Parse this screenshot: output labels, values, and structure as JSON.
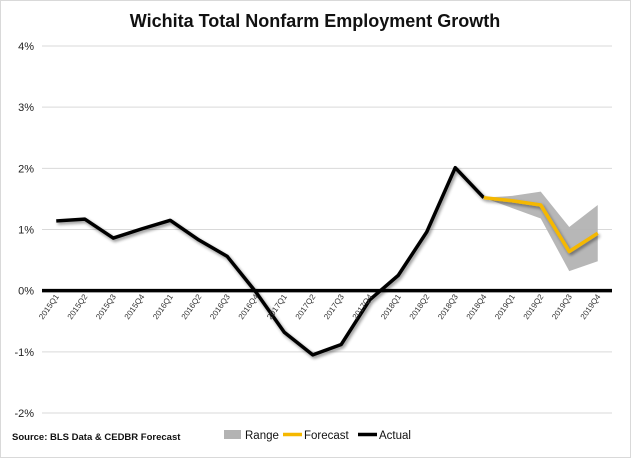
{
  "chart_data": {
    "type": "line",
    "title": "Wichita Total Nonfarm Employment Growth",
    "source": "Source: BLS Data & CEDBR Forecast",
    "categories": [
      "2015Q1",
      "2015Q2",
      "2015Q3",
      "2015Q4",
      "2016Q1",
      "2016Q2",
      "2016Q3",
      "2016Q4",
      "2017Q1",
      "2017Q2",
      "2017Q3",
      "2017Q4",
      "2018Q1",
      "2018Q2",
      "2018Q3",
      "2018Q4",
      "2019Q1",
      "2019Q2",
      "2019Q3",
      "2019Q4"
    ],
    "ylim": [
      -2,
      4
    ],
    "yticks": [
      -2,
      -1,
      0,
      1,
      2,
      3,
      4
    ],
    "ytick_labels": [
      "-2%",
      "-1%",
      "0%",
      "1%",
      "2%",
      "3%",
      "4%"
    ],
    "series": [
      {
        "name": "Actual",
        "color": "#000000",
        "values": [
          1.14,
          1.17,
          0.86,
          1.01,
          1.15,
          0.83,
          0.56,
          -0.02,
          -0.68,
          -1.05,
          -0.88,
          -0.15,
          0.25,
          0.96,
          2.01,
          1.52,
          null,
          null,
          null,
          null
        ]
      },
      {
        "name": "Forecast",
        "color": "#F5B800",
        "values": [
          null,
          null,
          null,
          null,
          null,
          null,
          null,
          null,
          null,
          null,
          null,
          null,
          null,
          null,
          null,
          1.52,
          1.47,
          1.4,
          0.64,
          0.94
        ]
      }
    ],
    "range": {
      "name": "Range",
      "color": "#b3b3b3",
      "low": [
        null,
        null,
        null,
        null,
        null,
        null,
        null,
        null,
        null,
        null,
        null,
        null,
        null,
        null,
        null,
        1.52,
        1.35,
        1.18,
        0.32,
        0.48
      ],
      "high": [
        null,
        null,
        null,
        null,
        null,
        null,
        null,
        null,
        null,
        null,
        null,
        null,
        null,
        null,
        null,
        1.52,
        1.55,
        1.62,
        1.04,
        1.4
      ]
    },
    "legend": {
      "position": "bottom",
      "items": [
        {
          "label": "Range",
          "type": "area",
          "color": "#b3b3b3"
        },
        {
          "label": "Forecast",
          "type": "line",
          "color": "#F5B800"
        },
        {
          "label": "Actual",
          "type": "line",
          "color": "#000000"
        }
      ]
    },
    "grid": "horizontal",
    "gridColor": "#d9d9d9"
  }
}
